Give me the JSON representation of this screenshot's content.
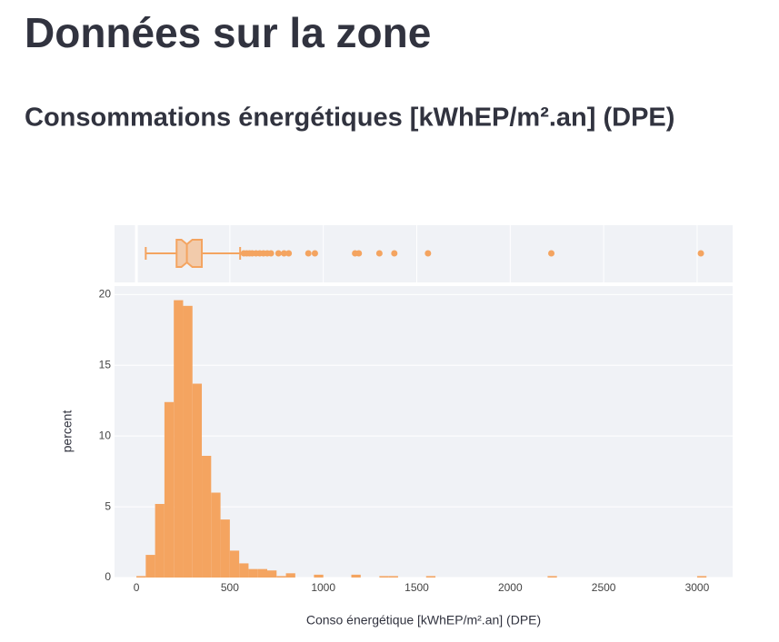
{
  "header": {
    "title": "Données sur la zone",
    "subtitle": "Consommations énergétiques [kWhEP/m².an] (DPE)"
  },
  "chart_data": {
    "type": "histogram",
    "x_label": "Conso énergétique [kWhEP/m².an] (DPE)",
    "y_label": "percent",
    "color": "#f4a460",
    "bins": [
      0,
      50,
      100,
      150,
      200,
      250,
      300,
      350,
      400,
      450,
      500,
      550,
      600,
      650,
      700,
      750,
      800,
      850,
      900,
      950,
      1000,
      1050,
      1100,
      1150,
      1200,
      1250,
      1300,
      1350,
      1400,
      1450,
      1500,
      1550,
      1600,
      1650,
      1700,
      1750,
      1800,
      1850,
      1900,
      1950,
      2000,
      2050,
      2100,
      2150,
      2200,
      2250,
      2300,
      2350,
      2400,
      2450,
      2500,
      2550,
      2600,
      2650,
      2700,
      2750,
      2800,
      2850,
      2900,
      2950,
      3000,
      3050
    ],
    "values": [
      0.1,
      1.6,
      5.2,
      12.4,
      19.6,
      19.2,
      13.7,
      8.6,
      6.0,
      4.1,
      1.9,
      1.0,
      0.6,
      0.6,
      0.5,
      0.1,
      0.3,
      0,
      0,
      0.2,
      0,
      0,
      0,
      0.2,
      0,
      0,
      0.1,
      0.1,
      0,
      0,
      0,
      0.1,
      0,
      0,
      0,
      0,
      0,
      0,
      0,
      0,
      0,
      0,
      0,
      0,
      0.1,
      0,
      0,
      0,
      0,
      0,
      0,
      0,
      0,
      0,
      0,
      0,
      0,
      0,
      0,
      0,
      0.1
    ],
    "xlim": [
      -117,
      3190
    ],
    "xticks": [
      0,
      500,
      1000,
      1500,
      2000,
      2500,
      3000
    ],
    "ylim": [
      0,
      20.6
    ],
    "yticks": [
      0,
      5,
      10,
      15,
      20
    ],
    "grid": true,
    "box": {
      "type": "box",
      "lowerfence": 50,
      "q1": 215,
      "median": 270,
      "q3": 350,
      "upperfence": 555,
      "outliers": [
        575,
        590,
        605,
        620,
        640,
        660,
        680,
        700,
        720,
        760,
        790,
        815,
        920,
        955,
        1170,
        1190,
        1300,
        1380,
        1560,
        2220,
        3020
      ]
    }
  }
}
